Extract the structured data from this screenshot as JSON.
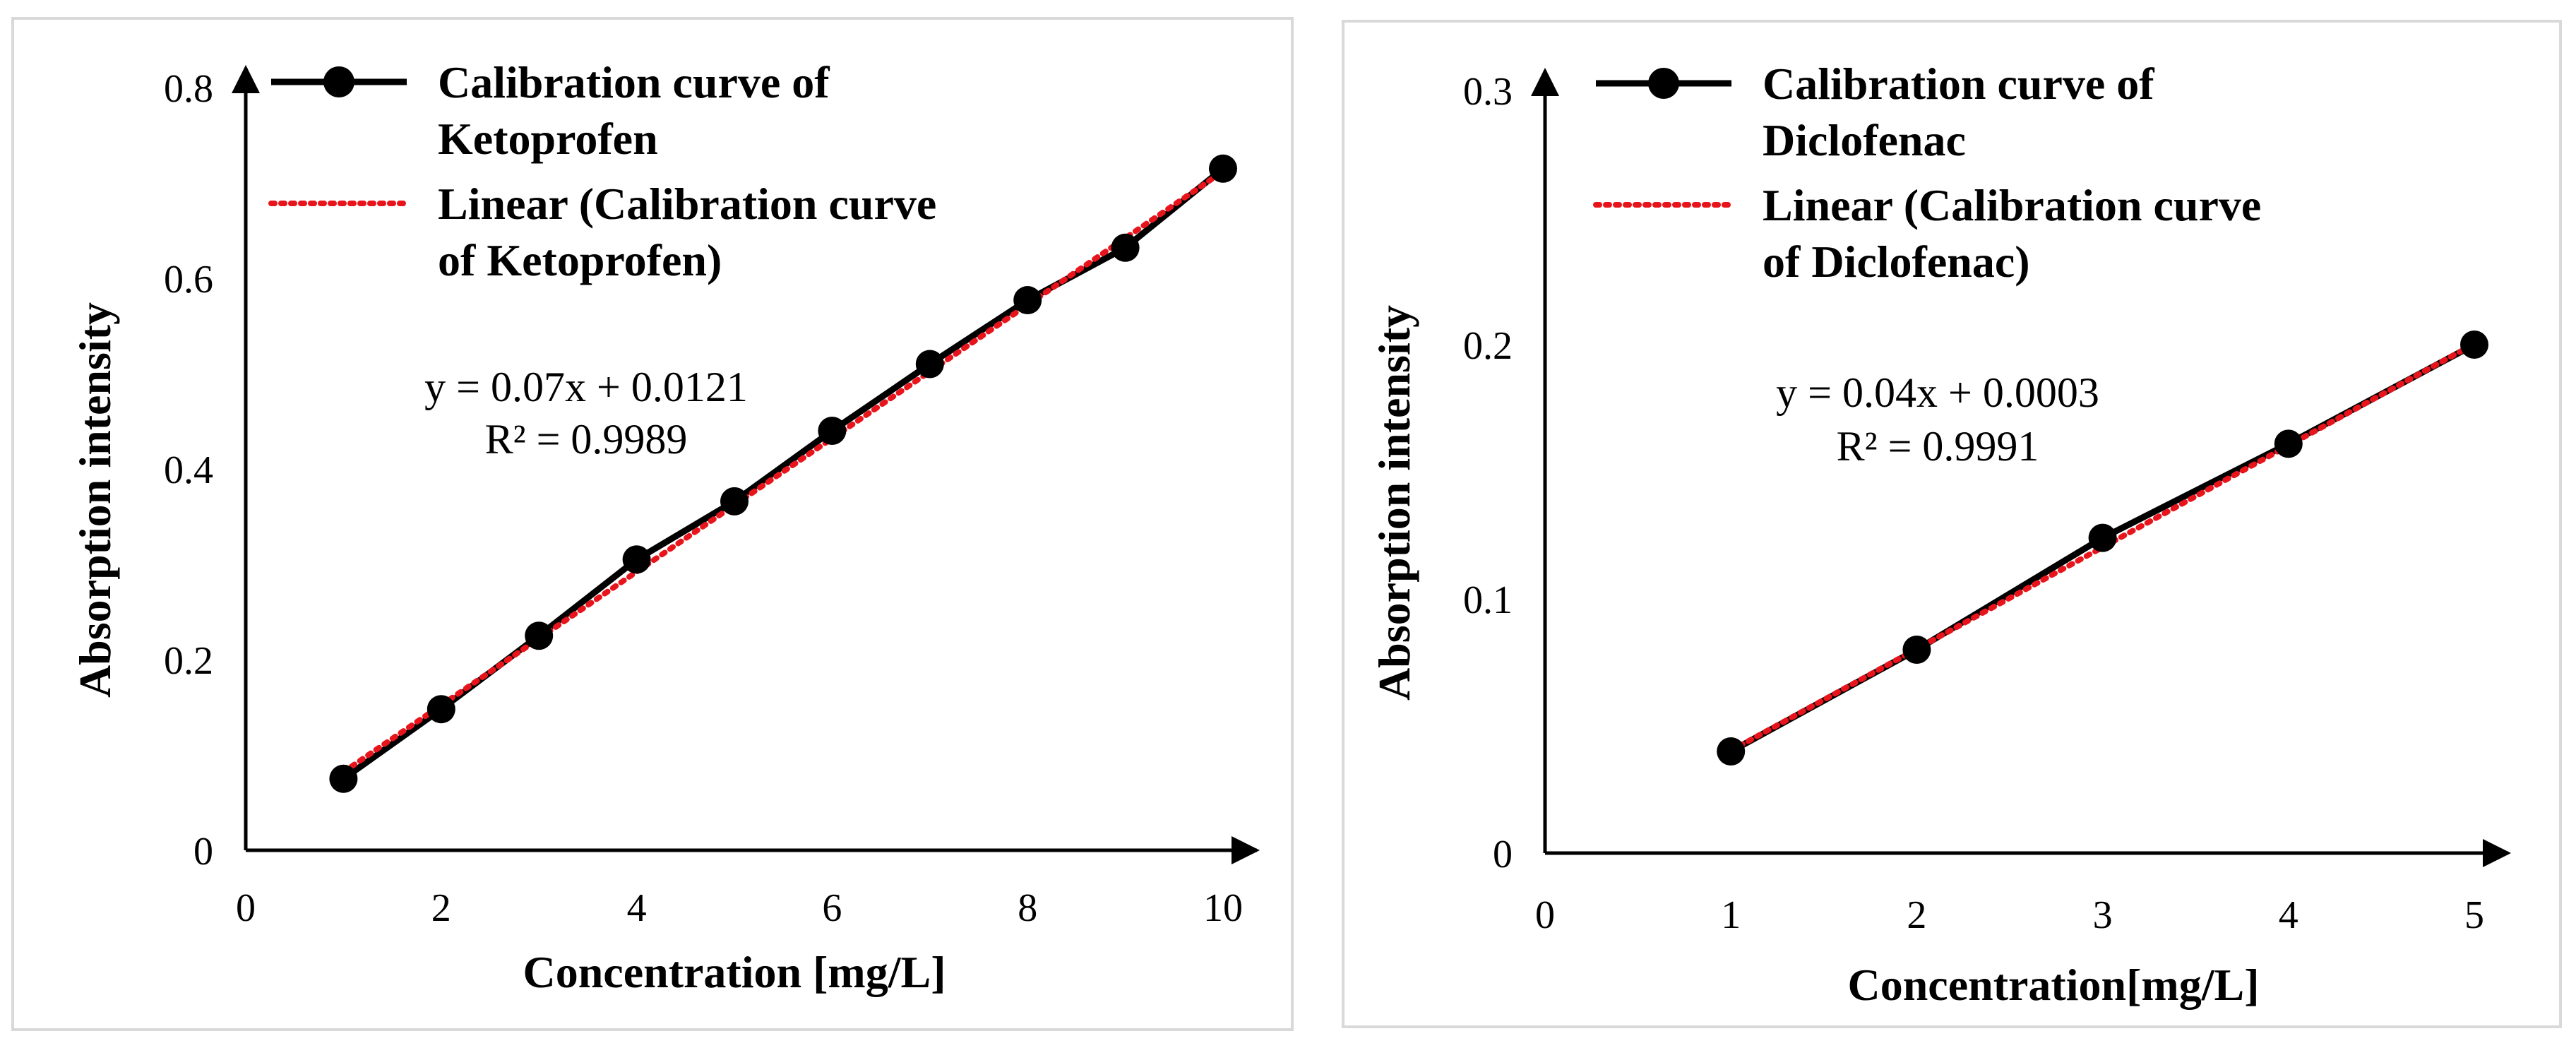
{
  "chart_data": [
    {
      "type": "line",
      "title": "",
      "xlabel": "Concentration [mg/L]",
      "ylabel": "Absorption intensity",
      "xlim": [
        0,
        10
      ],
      "ylim": [
        0,
        0.8
      ],
      "x_ticks": [
        "0",
        "2",
        "4",
        "6",
        "8",
        "10"
      ],
      "y_ticks": [
        "0",
        "0.2",
        "0.4",
        "0.6",
        "0.8"
      ],
      "legend": {
        "position": "top",
        "series_label": [
          "Calibration curve of",
          "Ketoprofen"
        ],
        "trend_label": [
          "Linear (Calibration curve",
          "of Ketoprofen)"
        ]
      },
      "series": [
        {
          "name": "Calibration curve of Ketoprofen",
          "x": [
            1,
            2,
            3,
            4,
            5,
            6,
            7,
            8,
            9,
            10
          ],
          "values": [
            0.075,
            0.148,
            0.225,
            0.305,
            0.366,
            0.44,
            0.51,
            0.577,
            0.632,
            0.715
          ]
        }
      ],
      "trendline": {
        "name": "Linear (Calibration curve of Ketoprofen)",
        "slope": 0.07,
        "intercept": 0.0121,
        "x_range": [
          1,
          10
        ],
        "color": "#e8141c"
      },
      "equation": "y = 0.07x + 0.0121",
      "r2": "R² = 0.9989",
      "line_color": "#000000"
    },
    {
      "type": "line",
      "title": "",
      "xlabel": "Concentration[mg/L]",
      "ylabel": "Absorption intensity",
      "xlim": [
        0,
        5
      ],
      "ylim": [
        0,
        0.3
      ],
      "x_ticks": [
        "0",
        "1",
        "2",
        "3",
        "4",
        "5"
      ],
      "y_ticks": [
        "0",
        "0.1",
        "0.2",
        "0.3"
      ],
      "legend": {
        "position": "top",
        "series_label": [
          "Calibration curve of",
          "Diclofenac"
        ],
        "trend_label": [
          "Linear (Calibration curve",
          "of Diclofenac)"
        ]
      },
      "series": [
        {
          "name": "Calibration curve of Diclofenac",
          "x": [
            1,
            2,
            3,
            4,
            5
          ],
          "values": [
            0.04,
            0.08,
            0.124,
            0.161,
            0.2
          ]
        }
      ],
      "trendline": {
        "name": "Linear (Calibration curve of Diclofenac)",
        "slope": 0.04,
        "intercept": 0.0003,
        "x_range": [
          1,
          5
        ],
        "color": "#e8141c"
      },
      "equation": "y = 0.04x + 0.0003",
      "r2": "R² = 0.9991",
      "line_color": "#000000"
    }
  ]
}
